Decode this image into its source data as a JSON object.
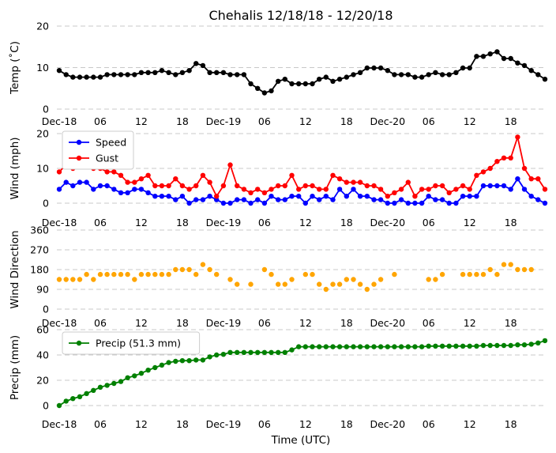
{
  "title": "Chehalis 12/18/18 - 12/20/18",
  "xlabel": "Time (UTC)",
  "x_tick_labels": [
    "Dec-18",
    "06",
    "12",
    "18",
    "Dec-19",
    "06",
    "12",
    "18",
    "Dec-20",
    "06",
    "12",
    "18"
  ],
  "colors": {
    "temp": "#000000",
    "speed": "#0000ff",
    "gust": "#ff0000",
    "direction": "#ffa500",
    "precip": "#008000",
    "grid": "#c8c8c8"
  },
  "chart_data": [
    {
      "type": "line",
      "ylabel": "Temp (˚C)",
      "ylim": [
        0,
        20
      ],
      "yticks": [
        0,
        10,
        20
      ],
      "x_hours_range": [
        0,
        71
      ],
      "grid": true,
      "series": [
        {
          "x_hours": [
            0,
            1,
            2,
            3,
            4,
            5,
            6,
            7,
            8,
            9,
            10,
            11,
            12,
            13,
            14,
            15,
            16,
            17,
            18,
            19,
            20,
            21,
            22,
            23,
            24,
            25,
            26,
            27,
            28,
            29,
            30,
            31,
            32,
            33,
            34,
            35,
            36,
            37,
            38,
            39,
            40,
            41,
            42,
            43,
            44,
            45,
            46,
            47,
            48,
            49,
            50,
            51,
            52,
            53,
            54,
            55,
            56,
            57,
            58,
            59,
            60,
            61,
            62,
            63,
            64,
            65,
            66,
            67,
            68,
            69,
            70,
            71
          ],
          "values": [
            9.3,
            8.3,
            7.7,
            7.7,
            7.7,
            7.7,
            7.7,
            8.3,
            8.3,
            8.3,
            8.3,
            8.3,
            8.8,
            8.8,
            8.8,
            9.3,
            8.8,
            8.3,
            8.8,
            9.3,
            11,
            10.5,
            8.8,
            8.8,
            8.8,
            8.3,
            8.3,
            8.3,
            6.1,
            5,
            3.9,
            4.4,
            6.7,
            7.2,
            6.1,
            6.1,
            6.1,
            6.1,
            7.2,
            7.7,
            6.7,
            7.2,
            7.7,
            8.3,
            8.8,
            9.9,
            9.9,
            9.9,
            9.3,
            8.3,
            8.3,
            8.3,
            7.7,
            7.7,
            8.3,
            8.8,
            8.3,
            8.3,
            8.8,
            9.9,
            9.9,
            12.7,
            12.7,
            13.3,
            13.8,
            12.2,
            12.2,
            11.1,
            10.5,
            9.3,
            8.3,
            7.2
          ]
        }
      ]
    },
    {
      "type": "line",
      "ylabel": "Wind (mph)",
      "ylim": [
        0,
        20
      ],
      "yticks": [
        0,
        10,
        20
      ],
      "x_hours_range": [
        0,
        71
      ],
      "grid": true,
      "legend": "top-left",
      "series": [
        {
          "name": "Speed",
          "x_hours": [
            0,
            1,
            2,
            3,
            4,
            5,
            6,
            7,
            8,
            9,
            10,
            11,
            12,
            13,
            14,
            15,
            16,
            17,
            18,
            19,
            20,
            21,
            22,
            23,
            24,
            25,
            26,
            27,
            28,
            29,
            30,
            31,
            32,
            33,
            34,
            35,
            36,
            37,
            38,
            39,
            40,
            41,
            42,
            43,
            44,
            45,
            46,
            47,
            48,
            49,
            50,
            51,
            52,
            53,
            54,
            55,
            56,
            57,
            58,
            59,
            60,
            61,
            62,
            63,
            64,
            65,
            66,
            67,
            68,
            69,
            70,
            71
          ],
          "values": [
            4,
            6,
            5,
            6,
            6,
            4,
            5,
            5,
            4,
            3,
            3,
            4,
            4,
            3,
            2,
            2,
            2,
            1,
            2,
            0,
            1,
            1,
            2,
            1,
            0,
            0,
            1,
            1,
            0,
            1,
            0,
            2,
            1,
            1,
            2,
            2,
            0,
            2,
            1,
            2,
            1,
            4,
            2,
            4,
            2,
            2,
            1,
            1,
            0,
            0,
            1,
            0,
            0,
            0,
            2,
            1,
            1,
            0,
            0,
            2,
            2,
            2,
            5,
            5,
            5,
            5,
            4,
            7,
            4,
            2,
            1,
            0
          ]
        },
        {
          "name": "Gust",
          "x_hours": [
            0,
            1,
            2,
            3,
            4,
            5,
            6,
            7,
            8,
            9,
            10,
            11,
            12,
            13,
            14,
            15,
            16,
            17,
            18,
            19,
            20,
            21,
            22,
            23,
            24,
            25,
            26,
            27,
            28,
            29,
            30,
            31,
            32,
            33,
            34,
            35,
            36,
            37,
            38,
            39,
            40,
            41,
            42,
            43,
            44,
            45,
            46,
            47,
            48,
            49,
            50,
            51,
            52,
            53,
            54,
            55,
            56,
            57,
            58,
            59,
            60,
            61,
            62,
            63,
            64,
            65,
            66,
            67,
            68,
            69,
            70,
            71
          ],
          "values": [
            9,
            11,
            10,
            13,
            11,
            10,
            10,
            9,
            9,
            8,
            6,
            6,
            7,
            8,
            5,
            5,
            5,
            7,
            5,
            4,
            5,
            8,
            6,
            2,
            5,
            11,
            5,
            4,
            3,
            4,
            3,
            4,
            5,
            5,
            8,
            4,
            5,
            5,
            4,
            4,
            8,
            7,
            6,
            6,
            6,
            5,
            5,
            4,
            2,
            3,
            4,
            6,
            2,
            4,
            4,
            5,
            5,
            3,
            4,
            5,
            4,
            8,
            9,
            10,
            12,
            13,
            13,
            19,
            10,
            7,
            7,
            4
          ]
        }
      ]
    },
    {
      "type": "scatter",
      "ylabel": "Wind Direction",
      "ylim": [
        0,
        360
      ],
      "yticks": [
        0,
        90,
        180,
        270,
        360
      ],
      "x_hours_range": [
        0,
        71
      ],
      "grid": true,
      "series": [
        {
          "x_hours": [
            0,
            1,
            2,
            3,
            4,
            5,
            6,
            7,
            8,
            9,
            10,
            11,
            12,
            13,
            14,
            15,
            16,
            17,
            18,
            19,
            20,
            21,
            22,
            23,
            25,
            26,
            28,
            30,
            31,
            32,
            33,
            34,
            36,
            37,
            38,
            39,
            40,
            41,
            42,
            43,
            44,
            45,
            46,
            47,
            49,
            54,
            55,
            56,
            59,
            60,
            61,
            62,
            63,
            64,
            65,
            66,
            67,
            68,
            69
          ],
          "values": [
            135,
            135,
            135,
            135,
            158,
            135,
            158,
            158,
            158,
            158,
            158,
            135,
            158,
            158,
            158,
            158,
            158,
            180,
            180,
            180,
            158,
            203,
            180,
            158,
            135,
            113,
            113,
            180,
            158,
            113,
            113,
            135,
            158,
            158,
            113,
            90,
            113,
            113,
            135,
            135,
            113,
            90,
            113,
            135,
            158,
            135,
            135,
            158,
            158,
            158,
            158,
            158,
            180,
            158,
            203,
            203,
            180,
            180,
            180
          ]
        }
      ]
    },
    {
      "type": "line",
      "ylabel": "Precip (mm)",
      "ylim": [
        0,
        60
      ],
      "yticks": [
        0,
        20,
        40,
        60
      ],
      "x_hours_range": [
        0,
        71
      ],
      "grid": true,
      "legend": "top-left",
      "series": [
        {
          "name": "Precip (51.3 mm)",
          "x_hours": [
            0,
            1,
            2,
            3,
            4,
            5,
            6,
            7,
            8,
            9,
            10,
            11,
            12,
            13,
            14,
            15,
            16,
            17,
            18,
            19,
            20,
            21,
            22,
            23,
            24,
            25,
            26,
            27,
            28,
            29,
            30,
            31,
            32,
            33,
            34,
            35,
            36,
            37,
            38,
            39,
            40,
            41,
            42,
            43,
            44,
            45,
            46,
            47,
            48,
            49,
            50,
            51,
            52,
            53,
            54,
            55,
            56,
            57,
            58,
            59,
            60,
            61,
            62,
            63,
            64,
            65,
            66,
            67,
            68,
            69,
            70,
            71
          ],
          "values": [
            0,
            3.5,
            5.5,
            7,
            9.5,
            12,
            14.5,
            16,
            17.5,
            19,
            22,
            23.5,
            25.5,
            28,
            30,
            32,
            34,
            35,
            35.5,
            35.5,
            36,
            36,
            38.5,
            40,
            40.5,
            42,
            42,
            42,
            42,
            42,
            42,
            42,
            42,
            42,
            44,
            46.5,
            46.5,
            46.5,
            46.5,
            46.5,
            46.5,
            46.5,
            46.5,
            46.5,
            46.5,
            46.5,
            46.5,
            46.5,
            46.5,
            46.5,
            46.5,
            46.5,
            46.5,
            46.5,
            47,
            47,
            47,
            47,
            47,
            47,
            47,
            47,
            47.5,
            47.5,
            47.5,
            47.5,
            47.5,
            48,
            48,
            48.5,
            49.5,
            51.3
          ]
        }
      ]
    }
  ]
}
